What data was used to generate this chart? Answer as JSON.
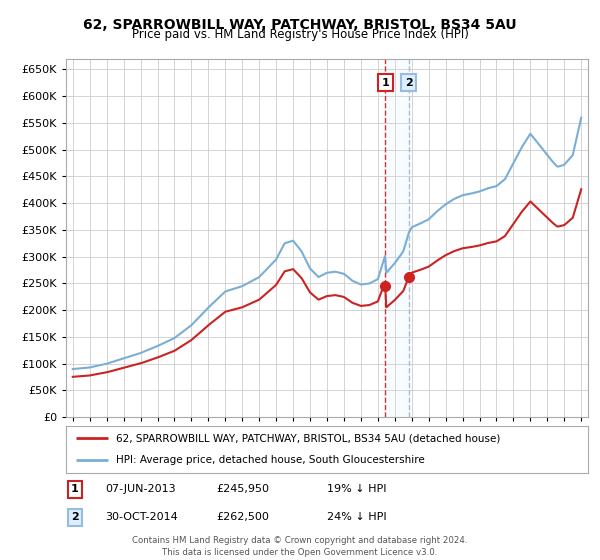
{
  "title": "62, SPARROWBILL WAY, PATCHWAY, BRISTOL, BS34 5AU",
  "subtitle": "Price paid vs. HM Land Registry's House Price Index (HPI)",
  "hpi_label": "HPI: Average price, detached house, South Gloucestershire",
  "property_label": "62, SPARROWBILL WAY, PATCHWAY, BRISTOL, BS34 5AU (detached house)",
  "hpi_color": "#7aaed6",
  "property_color": "#cc2222",
  "marker_color": "#cc2222",
  "annotation1_color": "#cc2222",
  "annotation2_color": "#99bbdd",
  "annotation2_fill": "#ddeeff",
  "vline1_color": "#cc3333",
  "vline2_color": "#aabbcc",
  "ylim": [
    0,
    670000
  ],
  "xlim_start": 1994.6,
  "xlim_end": 2025.4,
  "sale1_x": 2013.44,
  "sale1_price": 245950,
  "sale2_x": 2014.83,
  "sale2_price": 262500,
  "annotation1": {
    "label": "1",
    "date": "07-JUN-2013",
    "price": "£245,950",
    "pct": "19% ↓ HPI"
  },
  "annotation2": {
    "label": "2",
    "date": "30-OCT-2014",
    "price": "£262,500",
    "pct": "24% ↓ HPI"
  },
  "footer": "Contains HM Land Registry data © Crown copyright and database right 2024.\nThis data is licensed under the Open Government Licence v3.0.",
  "background_color": "#ffffff",
  "grid_color": "#cccccc",
  "years_hpi": [
    1995.0,
    1995.08,
    1995.17,
    1995.25,
    1995.33,
    1995.42,
    1995.5,
    1995.58,
    1995.67,
    1995.75,
    1995.83,
    1995.92,
    1996.0,
    1996.08,
    1996.17,
    1996.25,
    1996.33,
    1996.42,
    1996.5,
    1996.58,
    1996.67,
    1996.75,
    1996.83,
    1996.92,
    1997.0,
    1997.08,
    1997.17,
    1997.25,
    1997.33,
    1997.42,
    1997.5,
    1997.58,
    1997.67,
    1997.75,
    1997.83,
    1997.92,
    1998.0,
    1998.08,
    1998.17,
    1998.25,
    1998.33,
    1998.42,
    1998.5,
    1998.58,
    1998.67,
    1998.75,
    1998.83,
    1998.92,
    1999.0,
    1999.08,
    1999.17,
    1999.25,
    1999.33,
    1999.42,
    1999.5,
    1999.58,
    1999.67,
    1999.75,
    1999.83,
    1999.92,
    2000.0,
    2000.08,
    2000.17,
    2000.25,
    2000.33,
    2000.42,
    2000.5,
    2000.58,
    2000.67,
    2000.75,
    2000.83,
    2000.92,
    2001.0,
    2001.08,
    2001.17,
    2001.25,
    2001.33,
    2001.42,
    2001.5,
    2001.58,
    2001.67,
    2001.75,
    2001.83,
    2001.92,
    2002.0,
    2002.08,
    2002.17,
    2002.25,
    2002.33,
    2002.42,
    2002.5,
    2002.58,
    2002.67,
    2002.75,
    2002.83,
    2002.92,
    2003.0,
    2003.08,
    2003.17,
    2003.25,
    2003.33,
    2003.42,
    2003.5,
    2003.58,
    2003.67,
    2003.75,
    2003.83,
    2003.92,
    2004.0,
    2004.08,
    2004.17,
    2004.25,
    2004.33,
    2004.42,
    2004.5,
    2004.58,
    2004.67,
    2004.75,
    2004.83,
    2004.92,
    2005.0,
    2005.08,
    2005.17,
    2005.25,
    2005.33,
    2005.42,
    2005.5,
    2005.58,
    2005.67,
    2005.75,
    2005.83,
    2005.92,
    2006.0,
    2006.08,
    2006.17,
    2006.25,
    2006.33,
    2006.42,
    2006.5,
    2006.58,
    2006.67,
    2006.75,
    2006.83,
    2006.92,
    2007.0,
    2007.08,
    2007.17,
    2007.25,
    2007.33,
    2007.42,
    2007.5,
    2007.58,
    2007.67,
    2007.75,
    2007.83,
    2007.92,
    2008.0,
    2008.08,
    2008.17,
    2008.25,
    2008.33,
    2008.42,
    2008.5,
    2008.58,
    2008.67,
    2008.75,
    2008.83,
    2008.92,
    2009.0,
    2009.08,
    2009.17,
    2009.25,
    2009.33,
    2009.42,
    2009.5,
    2009.58,
    2009.67,
    2009.75,
    2009.83,
    2009.92,
    2010.0,
    2010.08,
    2010.17,
    2010.25,
    2010.33,
    2010.42,
    2010.5,
    2010.58,
    2010.67,
    2010.75,
    2010.83,
    2010.92,
    2011.0,
    2011.08,
    2011.17,
    2011.25,
    2011.33,
    2011.42,
    2011.5,
    2011.58,
    2011.67,
    2011.75,
    2011.83,
    2011.92,
    2012.0,
    2012.08,
    2012.17,
    2012.25,
    2012.33,
    2012.42,
    2012.5,
    2012.58,
    2012.67,
    2012.75,
    2012.83,
    2012.92,
    2013.0,
    2013.08,
    2013.17,
    2013.25,
    2013.33,
    2013.42,
    2013.5,
    2013.58,
    2013.67,
    2013.75,
    2013.83,
    2013.92,
    2014.0,
    2014.08,
    2014.17,
    2014.25,
    2014.33,
    2014.42,
    2014.5,
    2014.58,
    2014.67,
    2014.75,
    2014.83,
    2014.92,
    2015.0,
    2015.08,
    2015.17,
    2015.25,
    2015.33,
    2015.42,
    2015.5,
    2015.58,
    2015.67,
    2015.75,
    2015.83,
    2015.92,
    2016.0,
    2016.08,
    2016.17,
    2016.25,
    2016.33,
    2016.42,
    2016.5,
    2016.58,
    2016.67,
    2016.75,
    2016.83,
    2016.92,
    2017.0,
    2017.08,
    2017.17,
    2017.25,
    2017.33,
    2017.42,
    2017.5,
    2017.58,
    2017.67,
    2017.75,
    2017.83,
    2017.92,
    2018.0,
    2018.08,
    2018.17,
    2018.25,
    2018.33,
    2018.42,
    2018.5,
    2018.58,
    2018.67,
    2018.75,
    2018.83,
    2018.92,
    2019.0,
    2019.08,
    2019.17,
    2019.25,
    2019.33,
    2019.42,
    2019.5,
    2019.58,
    2019.67,
    2019.75,
    2019.83,
    2019.92,
    2020.0,
    2020.08,
    2020.17,
    2020.25,
    2020.33,
    2020.42,
    2020.5,
    2020.58,
    2020.67,
    2020.75,
    2020.83,
    2020.92,
    2021.0,
    2021.08,
    2021.17,
    2021.25,
    2021.33,
    2021.42,
    2021.5,
    2021.58,
    2021.67,
    2021.75,
    2021.83,
    2021.92,
    2022.0,
    2022.08,
    2022.17,
    2022.25,
    2022.33,
    2022.42,
    2022.5,
    2022.58,
    2022.67,
    2022.75,
    2022.83,
    2022.92,
    2023.0,
    2023.08,
    2023.17,
    2023.25,
    2023.33,
    2023.42,
    2023.5,
    2023.58,
    2023.67,
    2023.75,
    2023.83,
    2023.92,
    2024.0,
    2024.08,
    2024.17,
    2024.25,
    2024.33,
    2024.42,
    2024.5,
    2024.58,
    2024.67,
    2024.75,
    2024.83,
    2024.92,
    2025.0
  ]
}
